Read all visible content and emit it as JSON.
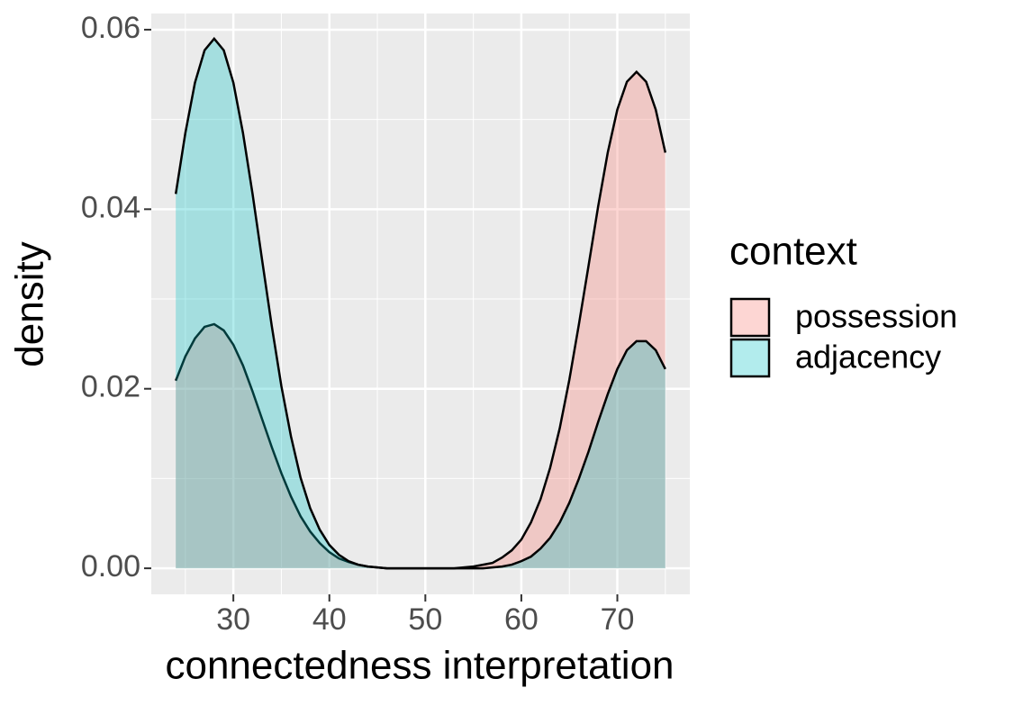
{
  "chart_data": {
    "type": "area",
    "x_label": "connectedness interpretation",
    "y_label": "density",
    "legend_title": "context",
    "legend": "right",
    "grid": true,
    "x": [
      24,
      25,
      26,
      27,
      28,
      29,
      30,
      31,
      32,
      33,
      34,
      35,
      36,
      37,
      38,
      39,
      40,
      41,
      42,
      43,
      44,
      45,
      46,
      47,
      48,
      49,
      50,
      51,
      52,
      53,
      54,
      55,
      56,
      57,
      58,
      59,
      60,
      61,
      62,
      63,
      64,
      65,
      66,
      67,
      68,
      69,
      70,
      71,
      72,
      73,
      74,
      75
    ],
    "series": [
      {
        "name": "possession",
        "color": "#F8766D",
        "values": [
          0.0209,
          0.0236,
          0.0256,
          0.0269,
          0.0272,
          0.0265,
          0.0249,
          0.0226,
          0.0197,
          0.0166,
          0.0135,
          0.0106,
          0.008,
          0.0058,
          0.0041,
          0.0028,
          0.0018,
          0.0011,
          0.0007,
          0.0004,
          0.0002,
          0.0001,
          0,
          0,
          0,
          0,
          0,
          0,
          0,
          0,
          0.0001,
          0.0002,
          0.0004,
          0.0006,
          0.0012,
          0.002,
          0.0032,
          0.0051,
          0.0077,
          0.0112,
          0.0156,
          0.021,
          0.0272,
          0.0337,
          0.0403,
          0.0463,
          0.0511,
          0.0542,
          0.0553,
          0.0542,
          0.0511,
          0.0463
        ]
      },
      {
        "name": "adjacency",
        "color": "#00BFC4",
        "values": [
          0.0417,
          0.0485,
          0.0541,
          0.0577,
          0.059,
          0.0577,
          0.0541,
          0.0485,
          0.0417,
          0.0343,
          0.027,
          0.0203,
          0.0147,
          0.0101,
          0.0067,
          0.0043,
          0.0026,
          0.0015,
          0.0008,
          0.0004,
          0.0002,
          0.0001,
          0,
          0,
          0,
          0,
          0,
          0,
          0,
          0,
          0,
          0,
          0,
          0.0001,
          0.0002,
          0.0004,
          0.0008,
          0.0013,
          0.0022,
          0.0034,
          0.0051,
          0.0073,
          0.01,
          0.013,
          0.0163,
          0.0194,
          0.0222,
          0.0243,
          0.0253,
          0.0253,
          0.0243,
          0.0222
        ]
      }
    ],
    "xlim": [
      21.45,
      77.55
    ],
    "xticks": [
      30,
      40,
      50,
      60,
      70
    ],
    "ylim": [
      -0.0029,
      0.0618
    ],
    "yticks": [
      {
        "value": 0,
        "label": "0.00"
      },
      {
        "value": 0.02,
        "label": "0.02"
      },
      {
        "value": 0.04,
        "label": "0.04"
      },
      {
        "value": 0.06,
        "label": "0.06"
      }
    ]
  }
}
